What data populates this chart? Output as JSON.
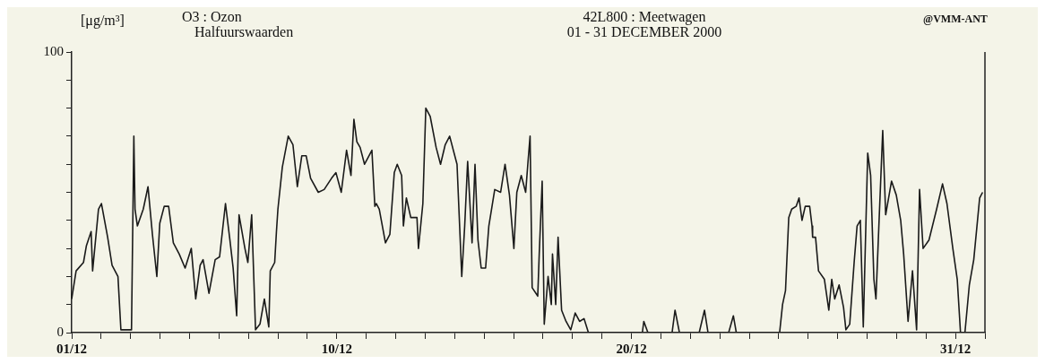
{
  "chart_data": {
    "type": "line",
    "title": "42L800 : Meetwagen",
    "subtitle": "01 - 31 DECEMBER 2000",
    "ylabel": "[μg/m³]",
    "annotations": [
      "O3 : Ozon",
      "Halfuurswaarden",
      "@VMM-ANT"
    ],
    "xlim": [
      "2000-12-01",
      "2001-01-01"
    ],
    "xticks": [
      {
        "value": "2000-12-01",
        "label": "01/12"
      },
      {
        "value": "2000-12-02",
        "label": null
      },
      {
        "value": "2000-12-03",
        "label": null
      },
      {
        "value": "2000-12-04",
        "label": null
      },
      {
        "value": "2000-12-05",
        "label": null
      },
      {
        "value": "2000-12-06",
        "label": null
      },
      {
        "value": "2000-12-07",
        "label": null
      },
      {
        "value": "2000-12-08",
        "label": null
      },
      {
        "value": "2000-12-09",
        "label": null
      },
      {
        "value": "2000-12-10",
        "label": "10/12"
      },
      {
        "value": "2000-12-11",
        "label": null
      },
      {
        "value": "2000-12-12",
        "label": null
      },
      {
        "value": "2000-12-13",
        "label": null
      },
      {
        "value": "2000-12-14",
        "label": null
      },
      {
        "value": "2000-12-15",
        "label": null
      },
      {
        "value": "2000-12-16",
        "label": null
      },
      {
        "value": "2000-12-17",
        "label": null
      },
      {
        "value": "2000-12-18",
        "label": null
      },
      {
        "value": "2000-12-19",
        "label": null
      },
      {
        "value": "2000-12-20",
        "label": "20/12"
      },
      {
        "value": "2000-12-21",
        "label": null
      },
      {
        "value": "2000-12-22",
        "label": null
      },
      {
        "value": "2000-12-23",
        "label": null
      },
      {
        "value": "2000-12-24",
        "label": null
      },
      {
        "value": "2000-12-25",
        "label": null
      },
      {
        "value": "2000-12-26",
        "label": null
      },
      {
        "value": "2000-12-27",
        "label": null
      },
      {
        "value": "2000-12-28",
        "label": null
      },
      {
        "value": "2000-12-29",
        "label": null
      },
      {
        "value": "2000-12-30",
        "label": null
      },
      {
        "value": "2000-12-31",
        "label": "31/12"
      },
      {
        "value": "2001-01-01",
        "label": null
      }
    ],
    "ylim": [
      0,
      100
    ],
    "yticks": [
      0,
      {
        "value": 10,
        "label": null
      },
      {
        "value": 20,
        "label": null
      },
      {
        "value": 30,
        "label": null
      },
      {
        "value": 40,
        "label": null
      },
      {
        "value": 50,
        "label": null
      },
      {
        "value": 60,
        "label": null
      },
      {
        "value": 70,
        "label": null
      },
      {
        "value": 80,
        "label": null
      },
      {
        "value": 90,
        "label": null
      },
      100
    ],
    "grid": false,
    "legend": false,
    "series": [
      {
        "color": "#1a1a1a",
        "x": [
          "2000-12-01T00:00",
          "2000-12-01T03:36",
          "2000-12-01T09:36",
          "2000-12-01T12:00",
          "2000-12-01T15:50",
          "2000-12-01T17:02",
          "2000-12-01T21:50",
          "2000-12-02T00:14",
          "2000-12-02T05:17",
          "2000-12-02T08:53",
          "2000-12-02T13:41",
          "2000-12-02T16:05",
          "2000-12-03T00:43",
          "2000-12-03T02:38",
          "2000-12-03T03:36",
          "2000-12-03T05:31",
          "2000-12-03T10:19",
          "2000-12-03T14:10",
          "2000-12-03T17:46",
          "2000-12-03T21:22",
          "2000-12-03T23:46",
          "2000-12-04T03:22",
          "2000-12-04T06:58",
          "2000-12-04T10:48",
          "2000-12-04T15:36",
          "2000-12-04T20:24",
          "2000-12-05T01:26",
          "2000-12-05T05:02",
          "2000-12-05T08:38",
          "2000-12-05T11:02",
          "2000-12-05T15:50",
          "2000-12-05T20:53",
          "2000-12-06T00:29",
          "2000-12-06T05:17",
          "2000-12-06T08:53",
          "2000-12-06T11:31",
          "2000-12-06T14:24",
          "2000-12-06T16:19",
          "2000-12-06T21:07",
          "2000-12-06T23:31",
          "2000-12-07T02:38",
          "2000-12-07T05:46",
          "2000-12-07T09:22",
          "2000-12-07T12:58",
          "2000-12-07T16:34",
          "2000-12-07T17:46",
          "2000-12-07T21:22",
          "2000-12-07T22:48",
          "2000-12-08T00:00",
          "2000-12-08T03:36",
          "2000-12-08T08:24",
          "2000-12-08T12:14",
          "2000-12-08T15:50",
          "2000-12-08T19:26",
          "2000-12-08T23:02",
          "2000-12-09T02:38",
          "2000-12-09T08:53",
          "2000-12-09T13:41",
          "2000-12-09T19:41",
          "2000-12-09T23:17",
          "2000-12-10T03:36",
          "2000-12-10T07:55",
          "2000-12-10T11:31",
          "2000-12-10T13:55",
          "2000-12-10T16:19",
          "2000-12-10T18:58",
          "2000-12-10T22:34",
          "2000-12-11T02:10",
          "2000-12-11T04:34",
          "2000-12-11T06:58",
          "2000-12-11T08:10",
          "2000-12-11T10:34",
          "2000-12-11T15:36",
          "2000-12-11T19:12",
          "2000-12-11T22:48",
          "2000-12-12T01:12",
          "2000-12-12T04:48",
          "2000-12-12T06:14",
          "2000-12-12T08:38",
          "2000-12-12T12:14",
          "2000-12-12T17:17",
          "2000-12-12T18:29",
          "2000-12-12T22:05",
          "2000-12-13T00:29",
          "2000-12-13T04:05",
          "2000-12-13T08:53",
          "2000-12-13T12:29",
          "2000-12-13T16:19",
          "2000-12-13T19:55",
          "2000-12-13T23:31",
          "2000-12-14T01:55",
          "2000-12-14T05:46",
          "2000-12-14T08:10",
          "2000-12-14T10:34",
          "2000-12-14T14:10",
          "2000-12-14T16:34",
          "2000-12-14T18:58",
          "2000-12-14T21:36",
          "2000-12-15T01:12",
          "2000-12-15T03:50",
          "2000-12-15T08:38",
          "2000-12-15T13:26",
          "2000-12-15T17:02",
          "2000-12-15T20:38",
          "2000-12-16T00:14",
          "2000-12-16T02:38",
          "2000-12-16T06:14",
          "2000-12-16T09:50",
          "2000-12-16T11:46",
          "2000-12-16T13:26",
          "2000-12-16T15:07",
          "2000-12-16T19:41",
          "2000-12-16T20:53",
          "2000-12-16T23:17",
          "2000-12-17T00:58",
          "2000-12-17T04:05",
          "2000-12-17T06:43",
          "2000-12-17T07:41",
          "2000-12-17T10:19",
          "2000-12-17T12:14",
          "2000-12-17T15:07",
          "2000-12-17T18:43",
          "2000-12-17T22:34",
          "2000-12-18T02:10",
          "2000-12-18T05:46",
          "2000-12-18T09:22",
          "2000-12-18T12:58",
          "2000-12-20T08:53",
          "2000-12-20T10:05",
          "2000-12-20T13:26",
          "2000-12-21T09:07",
          "2000-12-21T11:31",
          "2000-12-21T15:07",
          "2000-12-22T07:12",
          "2000-12-22T11:31",
          "2000-12-22T14:24",
          "2000-12-23T07:12",
          "2000-12-23T11:02",
          "2000-12-23T13:26",
          "2000-12-25T00:43",
          "2000-12-25T03:07",
          "2000-12-25T05:31",
          "2000-12-25T08:10",
          "2000-12-25T10:34",
          "2000-12-25T14:10",
          "2000-12-25T16:34",
          "2000-12-25T18:58",
          "2000-12-25T21:36",
          "2000-12-26T01:12",
          "2000-12-26T03:07",
          "2000-12-26T03:36",
          "2000-12-26T06:00",
          "2000-12-26T08:24",
          "2000-12-26T13:12",
          "2000-12-26T16:48",
          "2000-12-26T19:12",
          "2000-12-26T21:36",
          "2000-12-27T01:12",
          "2000-12-27T04:48",
          "2000-12-27T06:43",
          "2000-12-27T09:50",
          "2000-12-27T13:26",
          "2000-12-27T15:50",
          "2000-12-27T18:29",
          "2000-12-27T20:53",
          "2000-12-28T00:29",
          "2000-12-28T02:53",
          "2000-12-28T05:31",
          "2000-12-28T07:12",
          "2000-12-28T09:07",
          "2000-12-28T12:43",
          "2000-12-28T15:07",
          "2000-12-28T19:55",
          "2000-12-28T23:46",
          "2000-12-29T03:22",
          "2000-12-29T05:46",
          "2000-12-29T09:22",
          "2000-12-29T12:58",
          "2000-12-29T16:19",
          "2000-12-29T18:43",
          "2000-12-29T21:36",
          "2000-12-30T02:24",
          "2000-12-30T08:38",
          "2000-12-30T13:26",
          "2000-12-30T17:02",
          "2000-12-30T21:50",
          "2000-12-31T01:26",
          "2000-12-31T04:05",
          "2000-12-31T07:41",
          "2000-12-31T11:17",
          "2000-12-31T14:53",
          "2000-12-31T19:41",
          "2000-12-31T22:05"
        ],
        "values": [
          12,
          22,
          25,
          31,
          36,
          22,
          44,
          46,
          34,
          24,
          20,
          1,
          1,
          70,
          44,
          38,
          44,
          52,
          35,
          20,
          39,
          45,
          45,
          32,
          28,
          23,
          30,
          12,
          24,
          26,
          14,
          26,
          27,
          46,
          33,
          23,
          6,
          42,
          30,
          25,
          42,
          1,
          3,
          12,
          2,
          22,
          25,
          36,
          44,
          59,
          70,
          67,
          52,
          63,
          63,
          55,
          50,
          51,
          55,
          57,
          50,
          65,
          56,
          76,
          68,
          66,
          60,
          63,
          65,
          45,
          46,
          44,
          32,
          35,
          57,
          60,
          56,
          38,
          48,
          41,
          41,
          30,
          46,
          80,
          77,
          66,
          60,
          67,
          70,
          64,
          60,
          20,
          38,
          61,
          32,
          60,
          33,
          23,
          23,
          38,
          51,
          50,
          60,
          49,
          30,
          50,
          56,
          50,
          61,
          70,
          16,
          13,
          28,
          54,
          3,
          20,
          10,
          28,
          10,
          34,
          8,
          4,
          1,
          7,
          4,
          5,
          0,
          0,
          4,
          0,
          0,
          8,
          0,
          0,
          8,
          0,
          0,
          6,
          0,
          0,
          10,
          15,
          41,
          44,
          45,
          48,
          40,
          45,
          45,
          38,
          34,
          34,
          22,
          19,
          8,
          19,
          12,
          17,
          9,
          1,
          3,
          25,
          38,
          40,
          2,
          64,
          56,
          19,
          12,
          33,
          72,
          42,
          54,
          49,
          40,
          28,
          4,
          22,
          1,
          51,
          30,
          33,
          44,
          53,
          46,
          30,
          19,
          0,
          0,
          17,
          26,
          48,
          50
        ]
      }
    ]
  }
}
